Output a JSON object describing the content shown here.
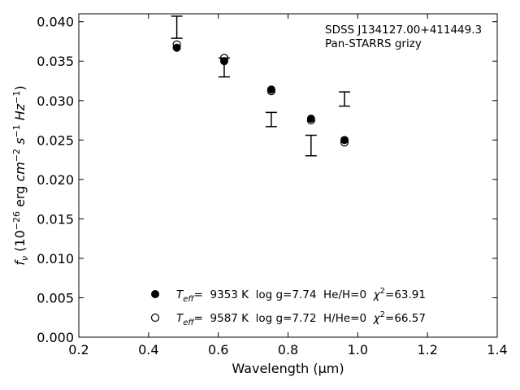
{
  "chart_data": {
    "type": "scatter",
    "xlabel": "Wavelength (μm)",
    "ylabel": "f_ν (10^−26 erg cm^−2 s^−1 Hz^−1)",
    "xlim": [
      0.2,
      1.4
    ],
    "ylim": [
      0.0,
      0.041
    ],
    "xticks": [
      "0.2",
      "0.4",
      "0.6",
      "0.8",
      "1.0",
      "1.2",
      "1.4"
    ],
    "yticks": [
      "0.000",
      "0.005",
      "0.010",
      "0.015",
      "0.020",
      "0.025",
      "0.030",
      "0.035",
      "0.040"
    ],
    "grid": false,
    "annotation": [
      "SDSS J134127.00+411449.3",
      "Pan-STARRS grizy"
    ],
    "observed": {
      "x": [
        0.481,
        0.617,
        0.752,
        0.866,
        0.962
      ],
      "y": [
        0.0393,
        0.0342,
        0.0276,
        0.0243,
        0.0302
      ],
      "err": [
        0.0014,
        0.0012,
        0.0009,
        0.0013,
        0.0009
      ]
    },
    "series": [
      {
        "marker": "filled",
        "x": [
          0.481,
          0.617,
          0.752,
          0.866,
          0.962
        ],
        "values": [
          0.0367,
          0.035,
          0.0314,
          0.0277,
          0.025
        ],
        "legend": {
          "teff_label": "T",
          "teff_sub": "eff",
          "text": "=  9353 K  log g=7.74  He/H=0  ",
          "chi_label": "χ",
          "chi_sup": "2",
          "chi_value": "=63.91"
        }
      },
      {
        "marker": "open",
        "x": [
          0.481,
          0.617,
          0.752,
          0.866,
          0.962
        ],
        "values": [
          0.0371,
          0.0354,
          0.0312,
          0.0275,
          0.0247
        ],
        "legend": {
          "teff_label": "T",
          "teff_sub": "eff",
          "text": "=  9587 K  log g=7.72  H/He=0  ",
          "chi_label": "χ",
          "chi_sup": "2",
          "chi_value": "=66.57"
        }
      }
    ],
    "legend_position": "lower-center"
  }
}
